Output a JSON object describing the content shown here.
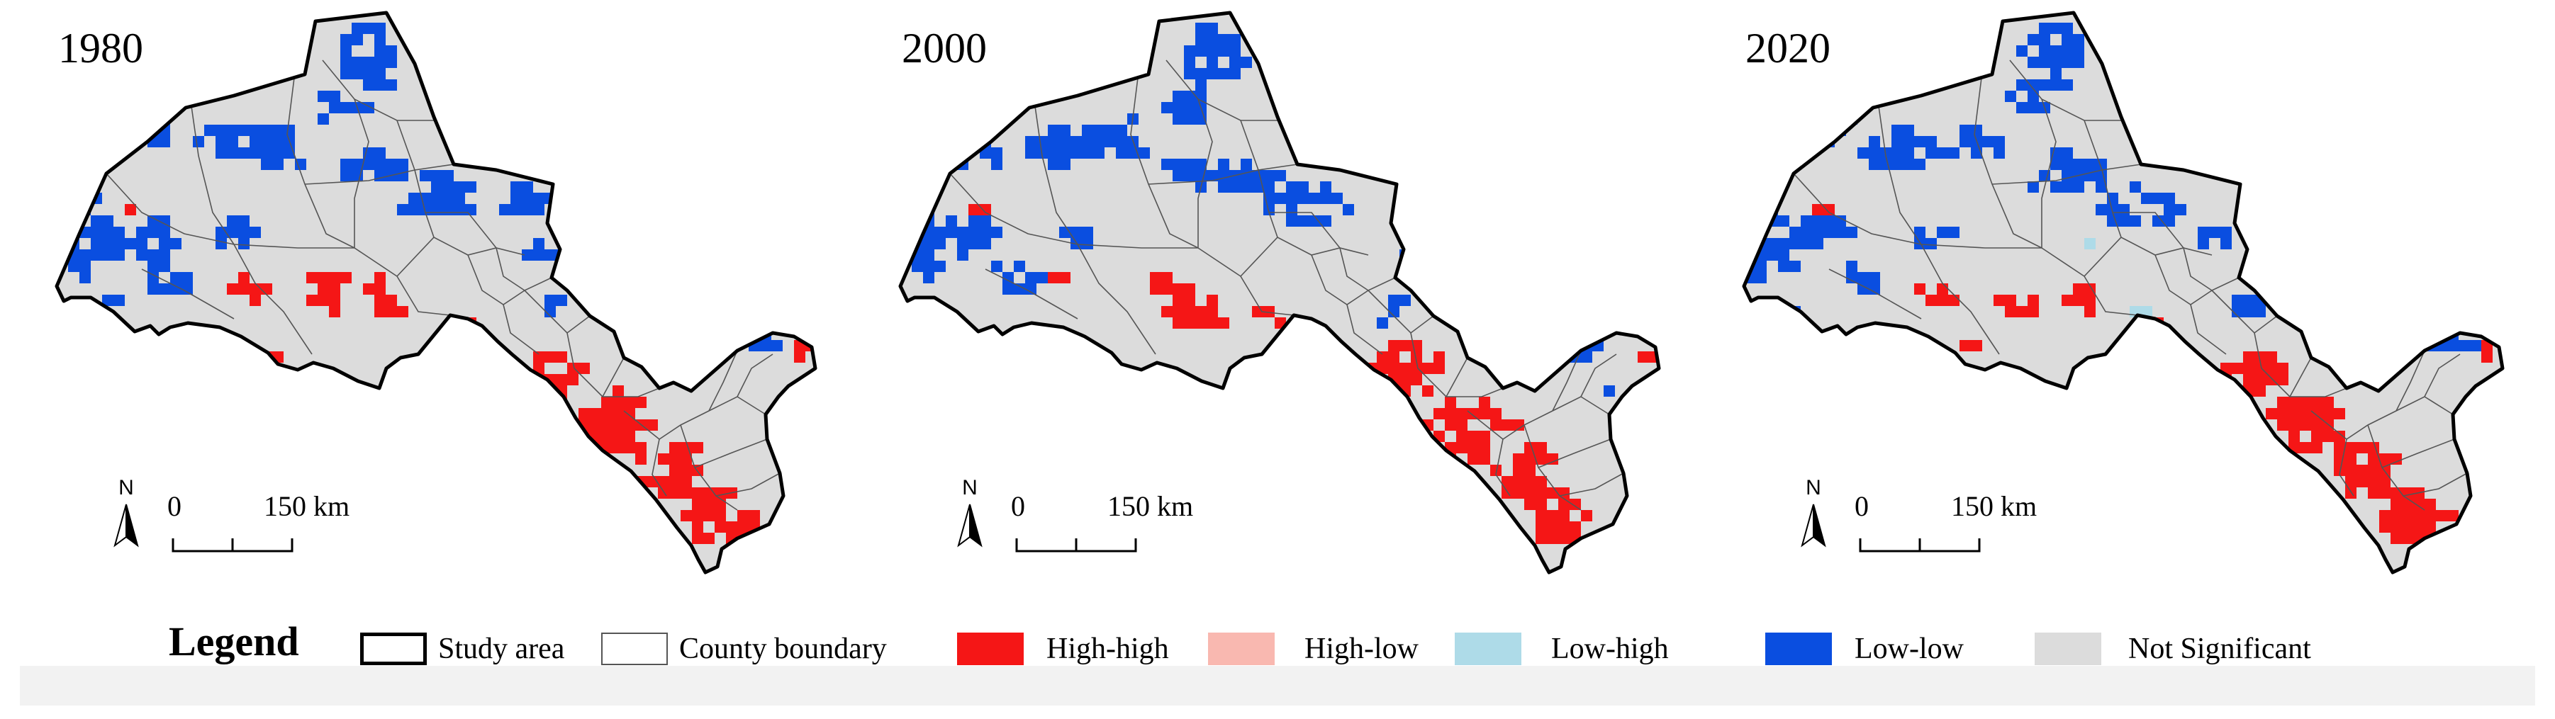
{
  "panels": [
    {
      "year": "1980",
      "scale_zero": "0",
      "scale_dist": "150 km",
      "north": "N"
    },
    {
      "year": "2000",
      "scale_zero": "0",
      "scale_dist": "150 km",
      "north": "N"
    },
    {
      "year": "2020",
      "scale_zero": "0",
      "scale_dist": "150 km",
      "north": "N"
    }
  ],
  "legend": {
    "title": "Legend",
    "items": [
      {
        "label": "Study area",
        "color": "#ffffff",
        "border": "#000000"
      },
      {
        "label": "County boundary",
        "color": "#ffffff",
        "border": "#555555"
      },
      {
        "label": "High-high",
        "color": "#f51616",
        "border": "none"
      },
      {
        "label": "High-low",
        "color": "#f9b8b0",
        "border": "none"
      },
      {
        "label": "Low-high",
        "color": "#aedbe8",
        "border": "none"
      },
      {
        "label": "Low-low",
        "color": "#0a4ee0",
        "border": "none"
      },
      {
        "label": "Not Significant",
        "color": "#dcdcdc",
        "border": "none"
      }
    ]
  },
  "colors": {
    "high_high": "#f51616",
    "high_low": "#f9b8b0",
    "low_high": "#aedbe8",
    "low_low": "#0a4ee0",
    "not_significant": "#dcdcdc",
    "boundary": "#000000",
    "county_boundary": "#555555"
  }
}
